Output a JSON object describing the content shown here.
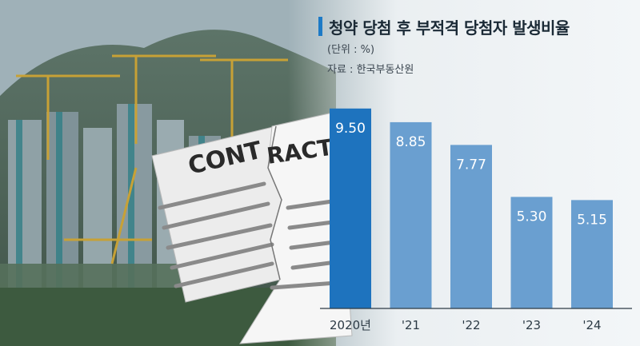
{
  "header": {
    "title": "청약 당첨 후 부적격 당첨자 발생비율",
    "unit": "(단위 : %)",
    "source": "자료 : 한국부동산원"
  },
  "illustration": {
    "contract_text_left": "CONT",
    "contract_text_right": "RACT"
  },
  "colors": {
    "highlight": "#1e73be",
    "bar": "#6a9fd0",
    "axis": "#2c3a45"
  },
  "chart_data": {
    "type": "bar",
    "categories": [
      "2020년",
      "'21",
      "'22",
      "'23",
      "'24"
    ],
    "values": [
      9.5,
      8.85,
      7.77,
      5.3,
      5.15
    ],
    "value_labels": [
      "9.50",
      "8.85",
      "7.77",
      "5.30",
      "5.15"
    ],
    "title": "청약 당첨 후 부적격 당첨자 발생비율",
    "ylim": [
      0,
      10.1
    ],
    "grid": false,
    "legend": "none"
  }
}
